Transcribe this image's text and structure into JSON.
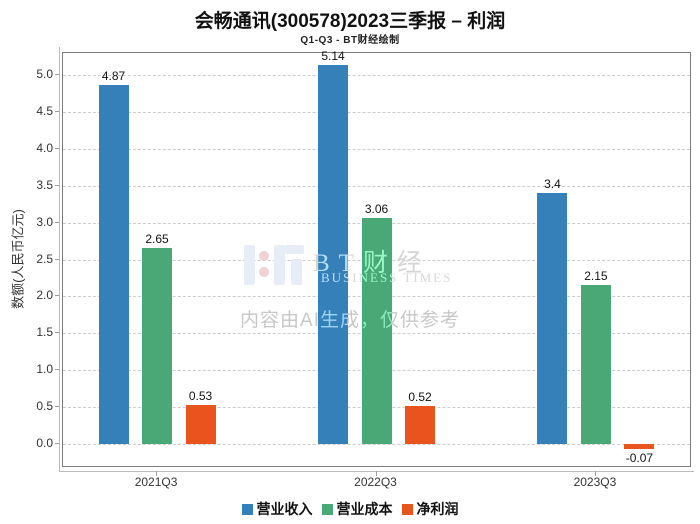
{
  "chart_data": {
    "type": "bar",
    "title": "会畅通讯(300578)2023三季报 – 利润",
    "subtitle": "Q1-Q3 - BT财经绘制",
    "categories": [
      "2021Q3",
      "2022Q3",
      "2023Q3"
    ],
    "series": [
      {
        "key": "operating-revenue",
        "name": "营业收入",
        "color": "#3580b8",
        "values": [
          4.87,
          5.14,
          3.4
        ]
      },
      {
        "key": "operating-cost",
        "name": "营业成本",
        "color": "#4aa877",
        "values": [
          2.65,
          3.06,
          2.15
        ]
      },
      {
        "key": "net-profit",
        "name": "净利润",
        "color": "#e9531e",
        "values": [
          0.53,
          0.52,
          -0.07
        ]
      }
    ],
    "xlabel": "",
    "ylabel": "数额(人民币亿元)",
    "yticks": [
      "0.0",
      "0.5",
      "1.0",
      "1.5",
      "2.0",
      "2.5",
      "3.0",
      "3.5",
      "4.0",
      "4.5",
      "5.0"
    ],
    "ylim": [
      -0.3,
      5.31
    ],
    "grid": "horizontal-dashed",
    "legend_position": "bottom",
    "bar_label_color": "#111111"
  },
  "watermark": {
    "brand_cn": "BT财经",
    "brand_en": "BUSINESS TIMES",
    "ai_notice": "内容由AI生成，仅供参考"
  }
}
